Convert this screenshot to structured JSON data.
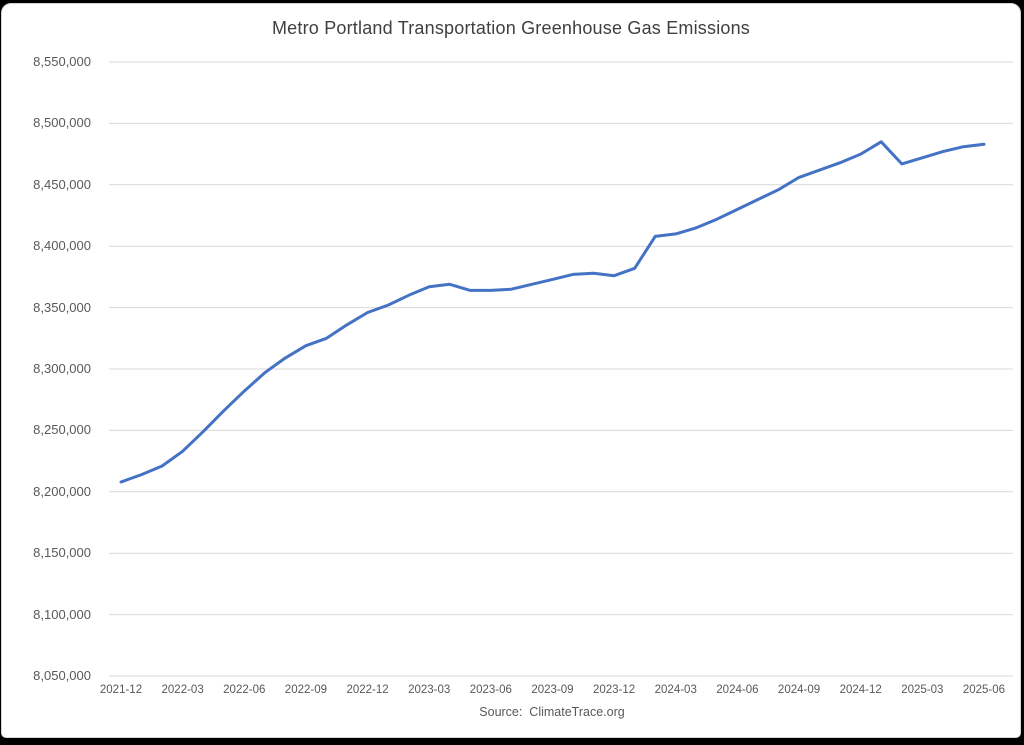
{
  "window": {
    "background": "#ffffff",
    "frame_color": "#000000",
    "edge_color": "#d6d6d6"
  },
  "chart_data": {
    "type": "line",
    "title": "Metro Portland Transportation Greenhouse Gas Emissions",
    "source": "Source:  ClimateTrace.org",
    "xlabel": "",
    "ylabel": "",
    "x": [
      "2021-12",
      "2022-01",
      "2022-02",
      "2022-03",
      "2022-04",
      "2022-05",
      "2022-06",
      "2022-07",
      "2022-08",
      "2022-09",
      "2022-10",
      "2022-11",
      "2022-12",
      "2023-01",
      "2023-02",
      "2023-03",
      "2023-04",
      "2023-05",
      "2023-06",
      "2023-07",
      "2023-08",
      "2023-09",
      "2023-10",
      "2023-11",
      "2023-12",
      "2024-01",
      "2024-02",
      "2024-03",
      "2024-04",
      "2024-05",
      "2024-06",
      "2024-07",
      "2024-08",
      "2024-09",
      "2024-10",
      "2024-11",
      "2024-12",
      "2025-01",
      "2025-02",
      "2025-03",
      "2025-04",
      "2025-05",
      "2025-06"
    ],
    "values": [
      8208000,
      8214000,
      8221000,
      8233000,
      8249000,
      8266000,
      8282000,
      8297000,
      8309000,
      8319000,
      8325000,
      8336000,
      8346000,
      8352000,
      8360000,
      8367000,
      8369000,
      8364000,
      8364000,
      8365000,
      8369000,
      8373000,
      8377000,
      8378000,
      8376000,
      8382000,
      8408000,
      8410000,
      8415000,
      8422000,
      8430000,
      8438000,
      8446000,
      8456000,
      8462000,
      8468000,
      8475000,
      8485000,
      8467000,
      8472000,
      8477000,
      8481000,
      8483000
    ],
    "xtick_labels": [
      "2021-12",
      "2022-03",
      "2022-06",
      "2022-09",
      "2022-12",
      "2023-03",
      "2023-06",
      "2023-09",
      "2023-12",
      "2024-03",
      "2024-06",
      "2024-09",
      "2024-12",
      "2025-03",
      "2025-06"
    ],
    "xtick_every": 3,
    "ylim": [
      8050000,
      8550000
    ],
    "ytick_step": 50000,
    "grid": true,
    "legend_position": "none",
    "line_color": "#4472C4",
    "grid_color": "#D9D9D9",
    "axis_label_color": "#595959",
    "title_color": "#404040"
  }
}
